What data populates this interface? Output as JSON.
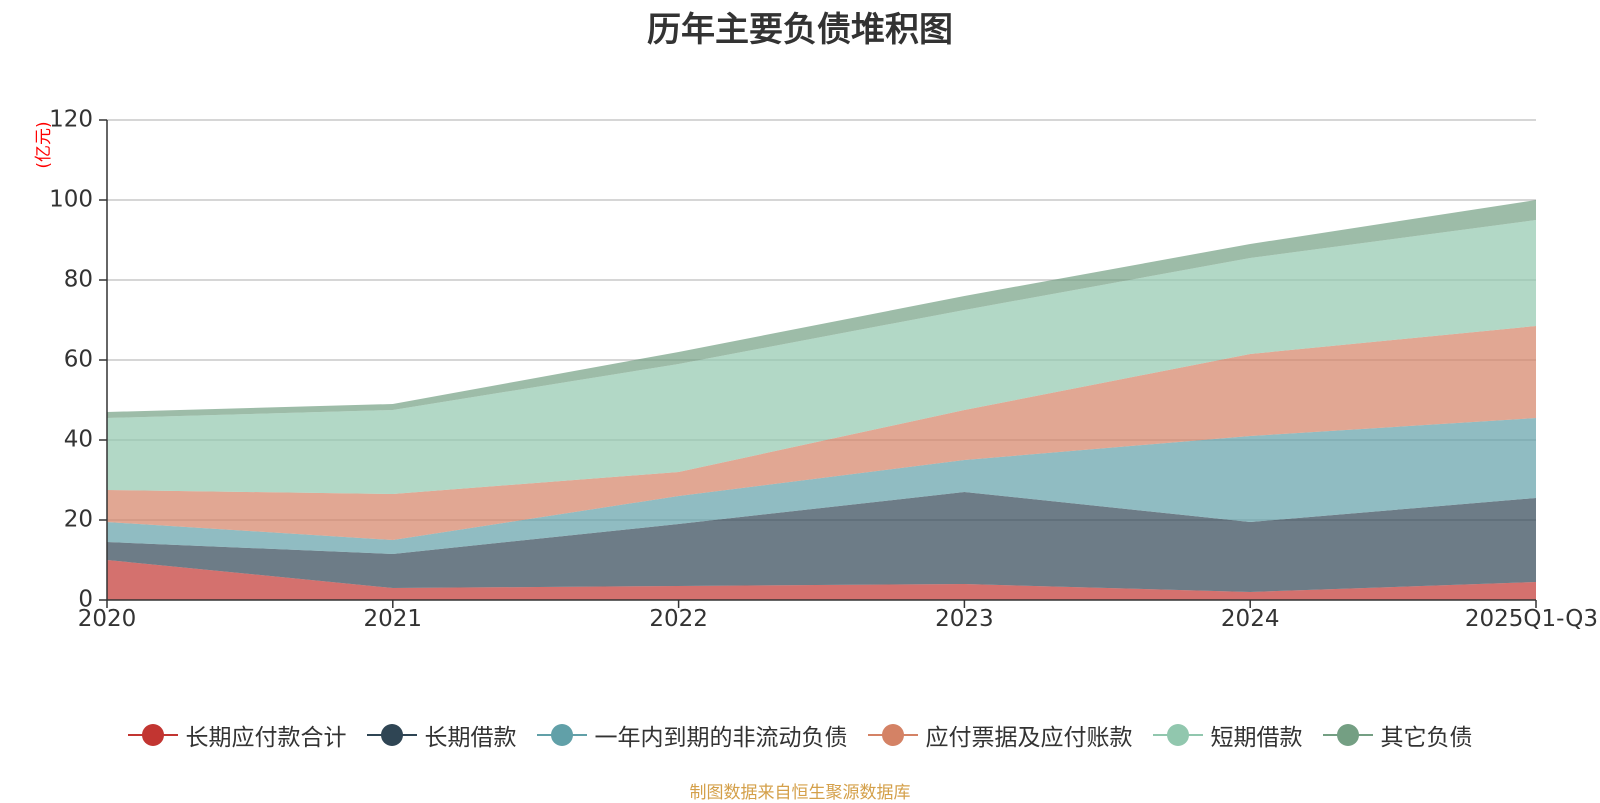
{
  "chart_data": {
    "type": "area",
    "stacked": true,
    "title": "历年主要负债堆积图",
    "ylabel": "(亿元)",
    "xlabel": "",
    "ylim": [
      0,
      120
    ],
    "yticks": [
      0,
      20,
      40,
      60,
      80,
      100,
      120
    ],
    "grid": true,
    "legend_position": "bottom",
    "categories": [
      "2020",
      "2021",
      "2022",
      "2023",
      "2024",
      "2025Q1-Q3"
    ],
    "series": [
      {
        "name": "长期应付款合计",
        "color": "#c23531",
        "values": [
          10.0,
          3.0,
          3.5,
          4.0,
          2.0,
          4.5
        ]
      },
      {
        "name": "长期借款",
        "color": "#2f4554",
        "values": [
          4.5,
          8.5,
          15.5,
          23.0,
          17.5,
          21.0
        ]
      },
      {
        "name": "一年内到期的非流动负债",
        "color": "#61a0a8",
        "values": [
          5.0,
          3.5,
          7.0,
          8.0,
          21.5,
          20.0
        ]
      },
      {
        "name": "应付票据及应付账款",
        "color": "#d48265",
        "values": [
          8.0,
          11.5,
          6.0,
          12.5,
          20.5,
          23.0
        ]
      },
      {
        "name": "短期借款",
        "color": "#91c7ae",
        "values": [
          18.0,
          21.0,
          27.0,
          25.0,
          24.0,
          26.5
        ]
      },
      {
        "name": "其它负债",
        "color": "#749f83",
        "values": [
          1.5,
          1.5,
          3.0,
          3.5,
          3.5,
          5.0
        ]
      }
    ]
  },
  "source_note": "制图数据来自恒生聚源数据库"
}
